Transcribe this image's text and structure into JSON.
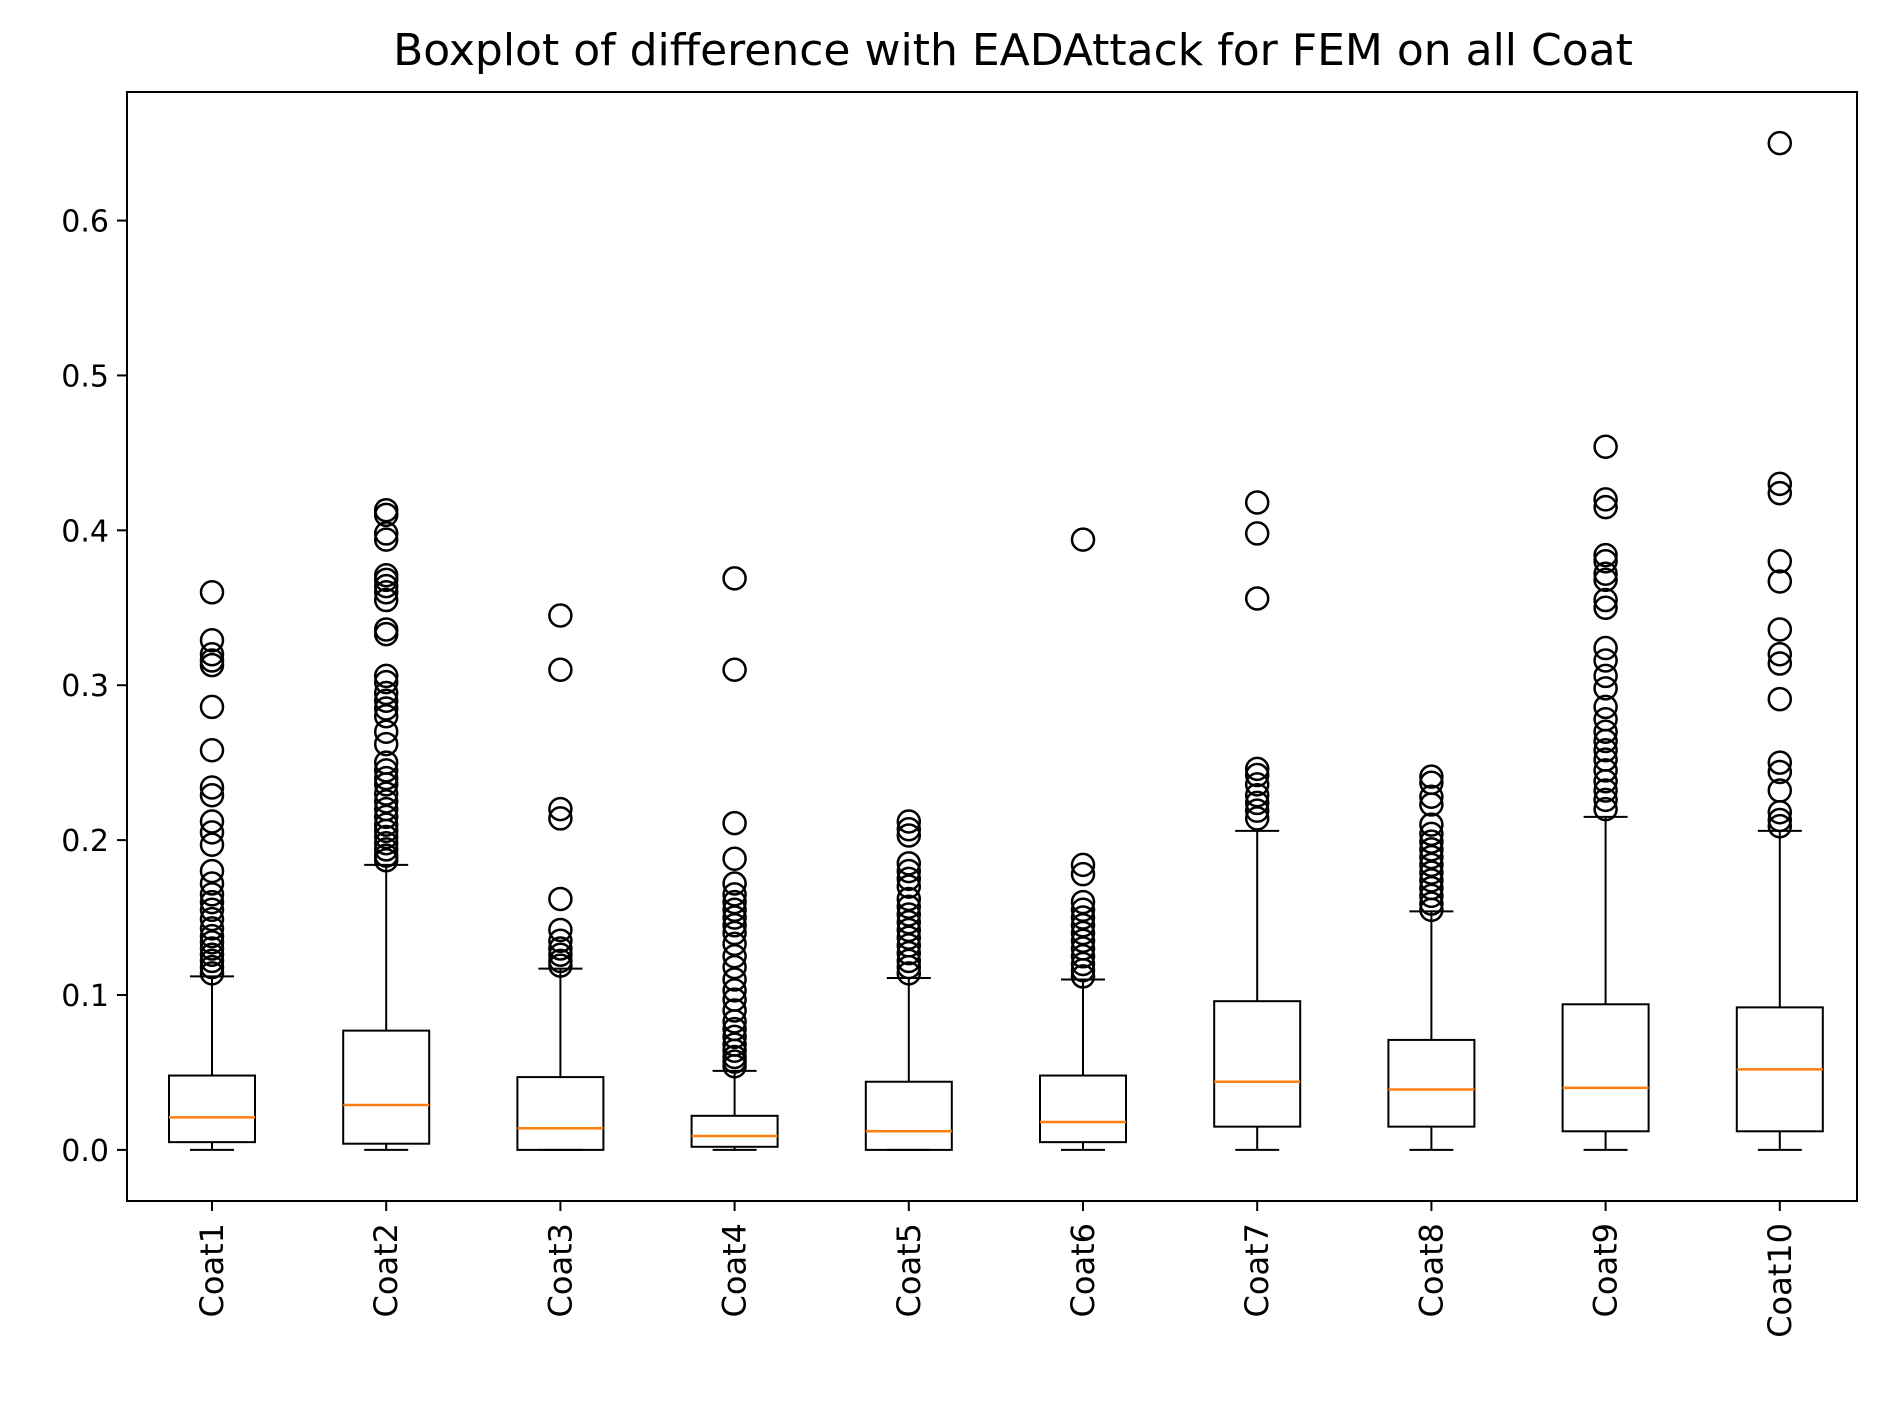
{
  "chart_data": {
    "type": "boxplot",
    "title": "Boxplot of difference with EADAttack for FEM on all Coat",
    "xlabel": "",
    "ylabel": "",
    "ylim": [
      -0.033,
      0.683
    ],
    "yticks": [
      0.0,
      0.1,
      0.2,
      0.3,
      0.4,
      0.5,
      0.6
    ],
    "ytick_labels": [
      "0.0",
      "0.1",
      "0.2",
      "0.3",
      "0.4",
      "0.5",
      "0.6"
    ],
    "grid": false,
    "colors": {
      "box": "#000000",
      "median": "#ff7f0e",
      "flier": "#000000"
    },
    "categories": [
      "Coat1",
      "Coat2",
      "Coat3",
      "Coat4",
      "Coat5",
      "Coat6",
      "Coat7",
      "Coat8",
      "Coat9",
      "Coat10"
    ],
    "boxes": [
      {
        "label": "Coat1",
        "whisker_low": 0.0,
        "q1": 0.005,
        "median": 0.021,
        "q3": 0.048,
        "whisker_high": 0.112,
        "fliers": [
          0.36,
          0.329,
          0.32,
          0.316,
          0.313,
          0.286,
          0.258,
          0.234,
          0.229,
          0.212,
          0.205,
          0.197,
          0.18,
          0.172,
          0.165,
          0.16,
          0.155,
          0.149,
          0.143,
          0.138,
          0.134,
          0.13,
          0.126,
          0.122,
          0.118,
          0.114
        ]
      },
      {
        "label": "Coat2",
        "whisker_low": 0.0,
        "q1": 0.004,
        "median": 0.029,
        "q3": 0.077,
        "whisker_high": 0.184,
        "fliers": [
          0.413,
          0.41,
          0.398,
          0.394,
          0.371,
          0.368,
          0.364,
          0.36,
          0.355,
          0.336,
          0.333,
          0.306,
          0.302,
          0.295,
          0.29,
          0.285,
          0.28,
          0.27,
          0.262,
          0.25,
          0.245,
          0.24,
          0.236,
          0.23,
          0.225,
          0.22,
          0.215,
          0.21,
          0.206,
          0.202,
          0.198,
          0.194,
          0.19,
          0.187
        ]
      },
      {
        "label": "Coat3",
        "whisker_low": 0.0,
        "q1": 0.0,
        "median": 0.014,
        "q3": 0.047,
        "whisker_high": 0.117,
        "fliers": [
          0.345,
          0.31,
          0.22,
          0.214,
          0.162,
          0.142,
          0.135,
          0.13,
          0.126,
          0.122,
          0.119
        ]
      },
      {
        "label": "Coat4",
        "whisker_low": 0.0,
        "q1": 0.002,
        "median": 0.009,
        "q3": 0.022,
        "whisker_high": 0.051,
        "fliers": [
          0.369,
          0.31,
          0.211,
          0.188,
          0.172,
          0.165,
          0.16,
          0.155,
          0.15,
          0.145,
          0.14,
          0.133,
          0.125,
          0.118,
          0.11,
          0.103,
          0.097,
          0.09,
          0.083,
          0.078,
          0.073,
          0.068,
          0.064,
          0.06,
          0.057,
          0.054
        ]
      },
      {
        "label": "Coat5",
        "whisker_low": 0.0,
        "q1": 0.0,
        "median": 0.012,
        "q3": 0.044,
        "whisker_high": 0.111,
        "fliers": [
          0.212,
          0.207,
          0.203,
          0.185,
          0.18,
          0.175,
          0.17,
          0.162,
          0.157,
          0.152,
          0.147,
          0.142,
          0.137,
          0.132,
          0.127,
          0.122,
          0.118,
          0.114
        ]
      },
      {
        "label": "Coat6",
        "whisker_low": 0.0,
        "q1": 0.005,
        "median": 0.018,
        "q3": 0.048,
        "whisker_high": 0.11,
        "fliers": [
          0.394,
          0.184,
          0.178,
          0.16,
          0.155,
          0.15,
          0.145,
          0.14,
          0.135,
          0.13,
          0.125,
          0.12,
          0.116,
          0.112
        ]
      },
      {
        "label": "Coat7",
        "whisker_low": 0.0,
        "q1": 0.015,
        "median": 0.044,
        "q3": 0.096,
        "whisker_high": 0.206,
        "fliers": [
          0.418,
          0.398,
          0.356,
          0.246,
          0.242,
          0.236,
          0.229,
          0.224,
          0.219,
          0.214
        ]
      },
      {
        "label": "Coat8",
        "whisker_low": 0.0,
        "q1": 0.015,
        "median": 0.039,
        "q3": 0.071,
        "whisker_high": 0.154,
        "fliers": [
          0.241,
          0.237,
          0.228,
          0.223,
          0.21,
          0.204,
          0.199,
          0.194,
          0.189,
          0.184,
          0.179,
          0.174,
          0.169,
          0.164,
          0.159,
          0.155
        ]
      },
      {
        "label": "Coat9",
        "whisker_low": 0.0,
        "q1": 0.012,
        "median": 0.04,
        "q3": 0.094,
        "whisker_high": 0.215,
        "fliers": [
          0.454,
          0.42,
          0.415,
          0.384,
          0.38,
          0.372,
          0.368,
          0.355,
          0.35,
          0.324,
          0.316,
          0.306,
          0.298,
          0.286,
          0.278,
          0.27,
          0.264,
          0.258,
          0.252,
          0.245,
          0.238,
          0.232,
          0.226,
          0.22
        ]
      },
      {
        "label": "Coat10",
        "whisker_low": 0.0,
        "q1": 0.012,
        "median": 0.052,
        "q3": 0.092,
        "whisker_high": 0.206,
        "fliers": [
          0.65,
          0.43,
          0.424,
          0.38,
          0.367,
          0.336,
          0.32,
          0.314,
          0.291,
          0.25,
          0.244,
          0.232,
          0.218,
          0.213,
          0.209
        ]
      }
    ]
  }
}
